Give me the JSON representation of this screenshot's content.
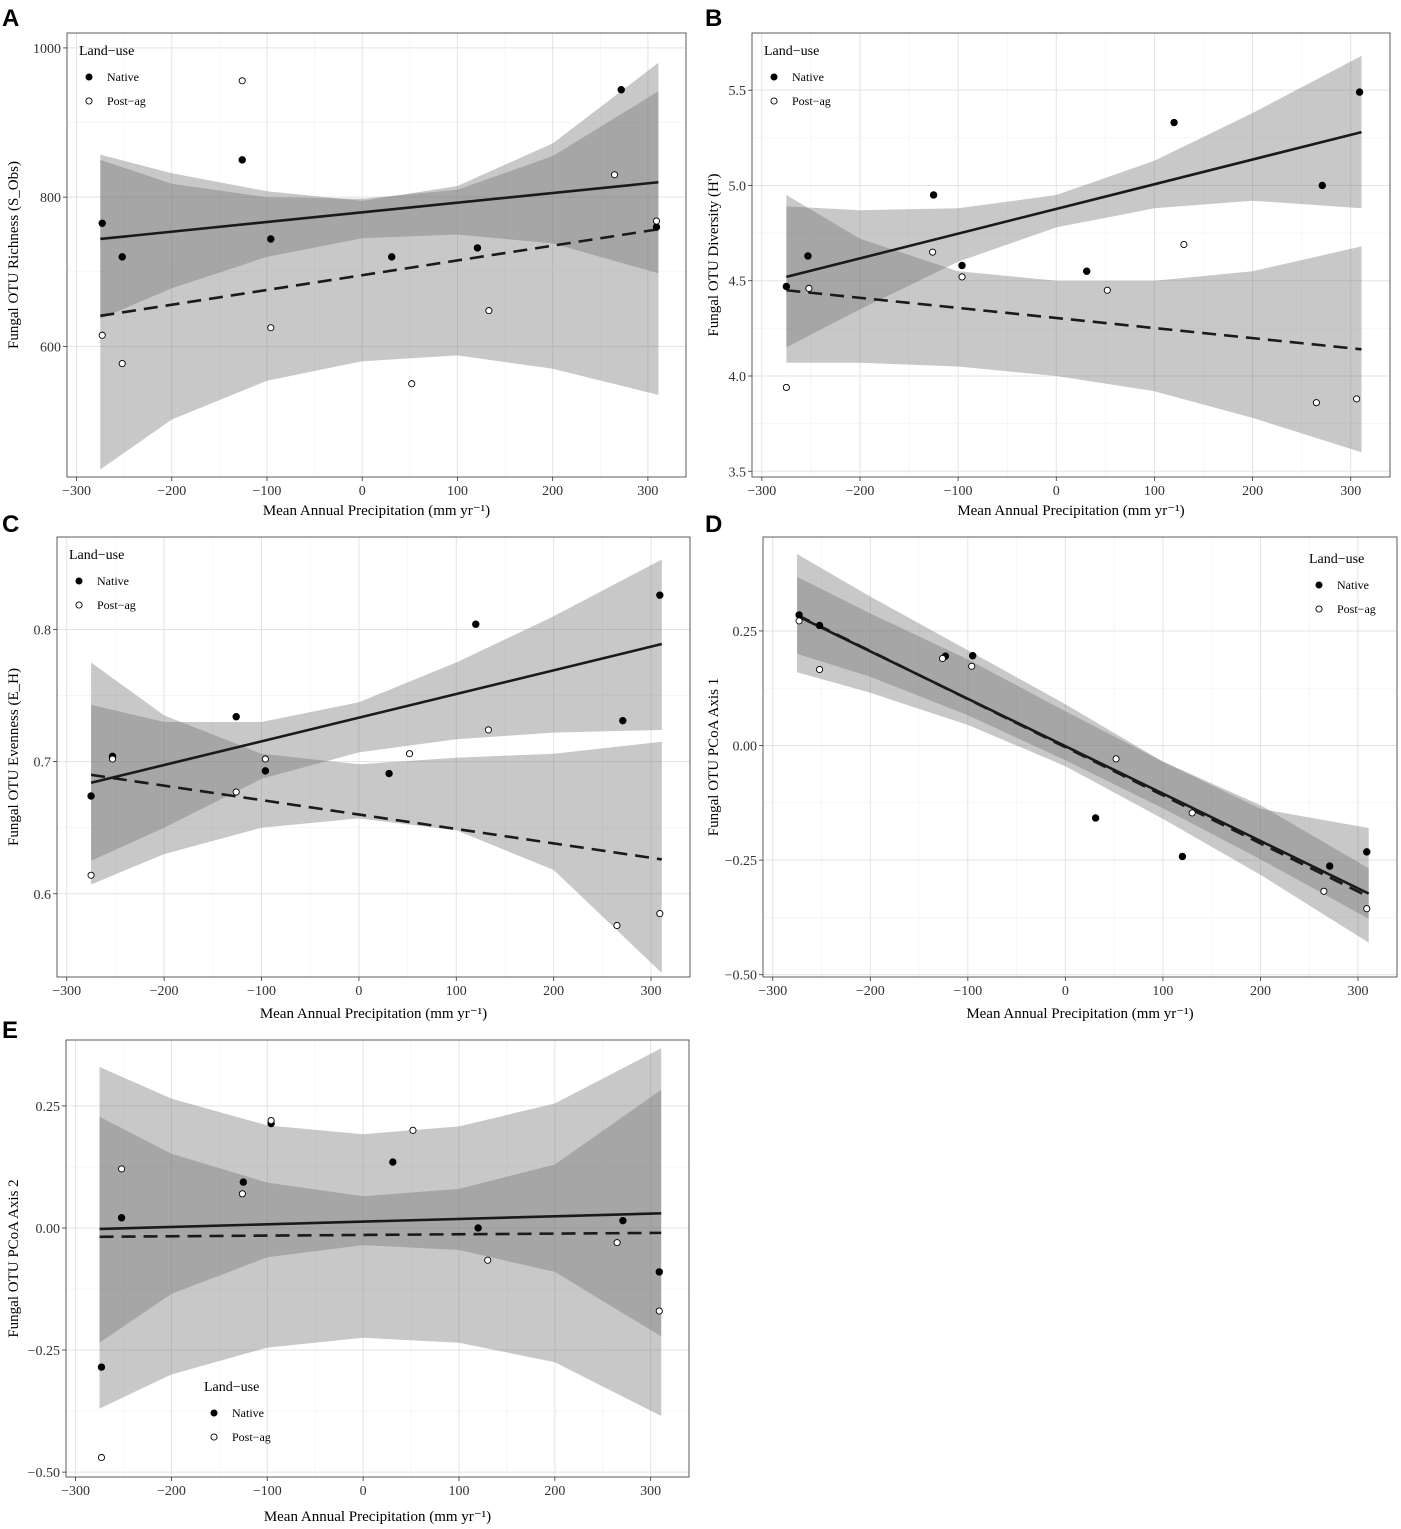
{
  "figure": {
    "legend_title": "Land−use",
    "legend_native": "Native",
    "legend_postag": "Post−ag"
  },
  "chart_data": [
    {
      "panel": "A",
      "type": "scatter",
      "title": "",
      "xlabel": "Mean Annual Precipitation (mm yr⁻¹)",
      "ylabel": "Fungal OTU Richness (S_Obs)",
      "xlim": [
        -310,
        340
      ],
      "ylim": [
        425,
        1020
      ],
      "xticks": [
        -300,
        -200,
        -100,
        0,
        100,
        200,
        300
      ],
      "yticks": [
        600,
        800,
        1000
      ],
      "ytick_labels": [
        "600",
        "800",
        "1000"
      ],
      "legend": {
        "title": "Land−use",
        "position": "top-left"
      },
      "series": [
        {
          "name": "Native",
          "marker": "filled",
          "points": [
            [
              -273,
              765
            ],
            [
              -252,
              720
            ],
            [
              -126,
              850
            ],
            [
              -96,
              744
            ],
            [
              31,
              720
            ],
            [
              121,
              732
            ],
            [
              272,
              944
            ],
            [
              309,
              760
            ]
          ],
          "fit": {
            "x": [
              -275,
              311
            ],
            "y": [
              744,
              820
            ]
          },
          "band": {
            "x": [
              -275,
              -200,
              -100,
              0,
              100,
              200,
              311
            ],
            "lower": [
              637,
              678,
              720,
              745,
              750,
              738,
              698
            ],
            "upper": [
              850,
              818,
              800,
              798,
              810,
              855,
              942
            ]
          }
        },
        {
          "name": "Post−ag",
          "marker": "open",
          "points": [
            [
              -273,
              615
            ],
            [
              -252,
              577
            ],
            [
              -126,
              956
            ],
            [
              -96,
              625
            ],
            [
              52,
              550
            ],
            [
              133,
              648
            ],
            [
              265,
              830
            ],
            [
              309,
              768
            ]
          ],
          "fit": {
            "x": [
              -275,
              311
            ],
            "y": [
              641,
              757
            ]
          },
          "band": {
            "x": [
              -275,
              -200,
              -100,
              0,
              100,
              200,
              311
            ],
            "lower": [
              435,
              502,
              554,
              580,
              588,
              570,
              535
            ],
            "upper": [
              857,
              832,
              808,
              795,
              815,
              872,
              980
            ]
          }
        }
      ]
    },
    {
      "panel": "B",
      "type": "scatter",
      "title": "",
      "xlabel": "Mean Annual Precipitation (mm yr⁻¹)",
      "ylabel": "Fungal OTU Diversity (H')",
      "xlim": [
        -310,
        340
      ],
      "ylim": [
        3.47,
        5.8
      ],
      "xticks": [
        -300,
        -200,
        -100,
        0,
        100,
        200,
        300
      ],
      "yticks": [
        3.5,
        4.0,
        4.5,
        5.0,
        5.5
      ],
      "ytick_labels": [
        "3.5",
        "4.0",
        "4.5",
        "5.0",
        "5.5"
      ],
      "legend": {
        "title": "Land−use",
        "position": "top-left"
      },
      "series": [
        {
          "name": "Native",
          "marker": "filled",
          "points": [
            [
              -275,
              4.47
            ],
            [
              -253,
              4.63
            ],
            [
              -125,
              4.95
            ],
            [
              -96,
              4.58
            ],
            [
              31,
              4.55
            ],
            [
              120,
              5.33
            ],
            [
              271,
              5.0
            ],
            [
              309,
              5.49
            ]
          ],
          "fit": {
            "x": [
              -275,
              311
            ],
            "y": [
              4.52,
              5.28
            ]
          },
          "band": {
            "x": [
              -275,
              -200,
              -100,
              0,
              100,
              200,
              311
            ],
            "lower": [
              4.15,
              4.35,
              4.6,
              4.78,
              4.88,
              4.92,
              4.88
            ],
            "upper": [
              4.89,
              4.87,
              4.88,
              4.95,
              5.13,
              5.38,
              5.68
            ]
          }
        },
        {
          "name": "Post−ag",
          "marker": "open",
          "points": [
            [
              -275,
              3.94
            ],
            [
              -252,
              4.46
            ],
            [
              -126,
              4.65
            ],
            [
              -96,
              4.52
            ],
            [
              52,
              4.45
            ],
            [
              130,
              4.69
            ],
            [
              265,
              3.86
            ],
            [
              306,
              3.88
            ]
          ],
          "fit": {
            "x": [
              -275,
              311
            ],
            "y": [
              4.45,
              4.14
            ]
          },
          "band": {
            "x": [
              -275,
              -200,
              -100,
              0,
              100,
              200,
              311
            ],
            "lower": [
              4.07,
              4.07,
              4.05,
              4.0,
              3.92,
              3.78,
              3.6
            ],
            "upper": [
              4.95,
              4.72,
              4.55,
              4.5,
              4.5,
              4.55,
              4.68
            ]
          }
        }
      ]
    },
    {
      "panel": "C",
      "type": "scatter",
      "title": "",
      "xlabel": "Mean Annual Precipitation (mm yr⁻¹)",
      "ylabel": "Fungal OTU Evenness (E_H)",
      "xlim": [
        -310,
        340
      ],
      "ylim": [
        0.537,
        0.87
      ],
      "xticks": [
        -300,
        -200,
        -100,
        0,
        100,
        200,
        300
      ],
      "yticks": [
        0.6,
        0.7,
        0.8
      ],
      "ytick_labels": [
        "0.6",
        "0.7",
        "0.8"
      ],
      "legend": {
        "title": "Land−use",
        "position": "top-left"
      },
      "series": [
        {
          "name": "Native",
          "marker": "filled",
          "points": [
            [
              -275,
              0.674
            ],
            [
              -253,
              0.704
            ],
            [
              -126,
              0.734
            ],
            [
              -96,
              0.693
            ],
            [
              31,
              0.691
            ],
            [
              120,
              0.804
            ],
            [
              271,
              0.731
            ],
            [
              309,
              0.826
            ]
          ],
          "fit": {
            "x": [
              -275,
              311
            ],
            "y": [
              0.684,
              0.789
            ]
          },
          "band": {
            "x": [
              -275,
              -200,
              -100,
              0,
              100,
              200,
              311
            ],
            "lower": [
              0.625,
              0.65,
              0.687,
              0.707,
              0.717,
              0.722,
              0.724
            ],
            "upper": [
              0.743,
              0.73,
              0.73,
              0.745,
              0.775,
              0.81,
              0.853
            ]
          }
        },
        {
          "name": "Post−ag",
          "marker": "open",
          "points": [
            [
              -275,
              0.614
            ],
            [
              -253,
              0.702
            ],
            [
              -126,
              0.677
            ],
            [
              -96,
              0.702
            ],
            [
              52,
              0.706
            ],
            [
              133,
              0.724
            ],
            [
              265,
              0.576
            ],
            [
              309,
              0.585
            ]
          ],
          "fit": {
            "x": [
              -275,
              311
            ],
            "y": [
              0.69,
              0.626
            ]
          },
          "band": {
            "x": [
              -275,
              -200,
              -100,
              0,
              100,
              200,
              311
            ],
            "lower": [
              0.607,
              0.63,
              0.65,
              0.657,
              0.648,
              0.618,
              0.54
            ],
            "upper": [
              0.775,
              0.735,
              0.706,
              0.698,
              0.703,
              0.706,
              0.715
            ]
          }
        }
      ]
    },
    {
      "panel": "D",
      "type": "scatter",
      "title": "",
      "xlabel": "Mean Annual Precipitation (mm yr⁻¹)",
      "ylabel": "Fungal OTU PCoA Axis 1",
      "xlim": [
        -310,
        340
      ],
      "ylim": [
        -0.505,
        0.455
      ],
      "xticks": [
        -300,
        -200,
        -100,
        0,
        100,
        200,
        300
      ],
      "yticks": [
        -0.5,
        -0.25,
        0.0,
        0.25
      ],
      "ytick_labels": [
        "−0.50",
        "−0.25",
        "0.00",
        "0.25"
      ],
      "legend": {
        "title": "Land−use",
        "position": "top-right"
      },
      "series": [
        {
          "name": "Native",
          "marker": "filled",
          "points": [
            [
              -273,
              0.285
            ],
            [
              -252,
              0.262
            ],
            [
              -123,
              0.195
            ],
            [
              -95,
              0.196
            ],
            [
              31,
              -0.158
            ],
            [
              120,
              -0.242
            ],
            [
              271,
              -0.263
            ],
            [
              309,
              -0.232
            ]
          ],
          "fit": {
            "x": [
              -275,
              311
            ],
            "y": [
              0.283,
              -0.323
            ]
          },
          "band": {
            "x": [
              -275,
              -200,
              -100,
              0,
              100,
              200,
              311
            ],
            "lower": [
              0.2,
              0.15,
              0.066,
              -0.032,
              -0.137,
              -0.248,
              -0.378
            ],
            "upper": [
              0.368,
              0.288,
              0.188,
              0.075,
              -0.035,
              -0.13,
              -0.268
            ]
          }
        },
        {
          "name": "Post−ag",
          "marker": "open",
          "points": [
            [
              -273,
              0.272
            ],
            [
              -252,
              0.166
            ],
            [
              -126,
              0.19
            ],
            [
              -96,
              0.173
            ],
            [
              52,
              -0.029
            ],
            [
              130,
              -0.147
            ],
            [
              265,
              -0.318
            ],
            [
              309,
              -0.356
            ]
          ],
          "fit": {
            "x": [
              -275,
              311
            ],
            "y": [
              0.285,
              -0.33
            ]
          },
          "band": {
            "x": [
              -275,
              -200,
              -100,
              0,
              100,
              200,
              311
            ],
            "lower": [
              0.16,
              0.115,
              0.045,
              -0.045,
              -0.16,
              -0.282,
              -0.43
            ],
            "upper": [
              0.418,
              0.325,
              0.208,
              0.09,
              -0.035,
              -0.138,
              -0.18
            ]
          }
        }
      ]
    },
    {
      "panel": "E",
      "type": "scatter",
      "title": "",
      "xlabel": "Mean Annual Precipitation (mm yr⁻¹)",
      "ylabel": "Fungal OTU PCoA Axis 2",
      "xlim": [
        -310,
        340
      ],
      "ylim": [
        -0.51,
        0.385
      ],
      "xticks": [
        -300,
        -200,
        -100,
        0,
        100,
        200,
        300
      ],
      "yticks": [
        -0.5,
        -0.25,
        0.0,
        0.25
      ],
      "ytick_labels": [
        "−0.50",
        "−0.25",
        "0.00",
        "0.25"
      ],
      "legend": {
        "title": "Land−use",
        "position": "bottom-left"
      },
      "series": [
        {
          "name": "Native",
          "marker": "filled",
          "points": [
            [
              -273,
              -0.285
            ],
            [
              -252,
              0.021
            ],
            [
              -125,
              0.094
            ],
            [
              -96,
              0.214
            ],
            [
              31,
              0.135
            ],
            [
              120,
              0.0
            ],
            [
              271,
              0.015
            ],
            [
              309,
              -0.09
            ]
          ],
          "fit": {
            "x": [
              -275,
              311
            ],
            "y": [
              -0.002,
              0.03
            ]
          },
          "band": {
            "x": [
              -275,
              -200,
              -100,
              0,
              100,
              200,
              311
            ],
            "lower": [
              -0.235,
              -0.135,
              -0.06,
              -0.035,
              -0.045,
              -0.09,
              -0.222
            ],
            "upper": [
              0.228,
              0.152,
              0.093,
              0.065,
              0.08,
              0.13,
              0.283
            ]
          }
        },
        {
          "name": "Post−ag",
          "marker": "open",
          "points": [
            [
              -273,
              -0.47
            ],
            [
              -252,
              0.121
            ],
            [
              -126,
              0.07
            ],
            [
              -96,
              0.22
            ],
            [
              52,
              0.2
            ],
            [
              130,
              -0.066
            ],
            [
              265,
              -0.03
            ],
            [
              309,
              -0.17
            ]
          ],
          "fit": {
            "x": [
              -275,
              311
            ],
            "y": [
              -0.018,
              -0.01
            ]
          },
          "band": {
            "x": [
              -275,
              -200,
              -100,
              0,
              100,
              200,
              311
            ],
            "lower": [
              -0.37,
              -0.3,
              -0.245,
              -0.225,
              -0.235,
              -0.275,
              -0.385
            ],
            "upper": [
              0.33,
              0.265,
              0.21,
              0.192,
              0.208,
              0.255,
              0.368
            ]
          }
        }
      ]
    }
  ]
}
